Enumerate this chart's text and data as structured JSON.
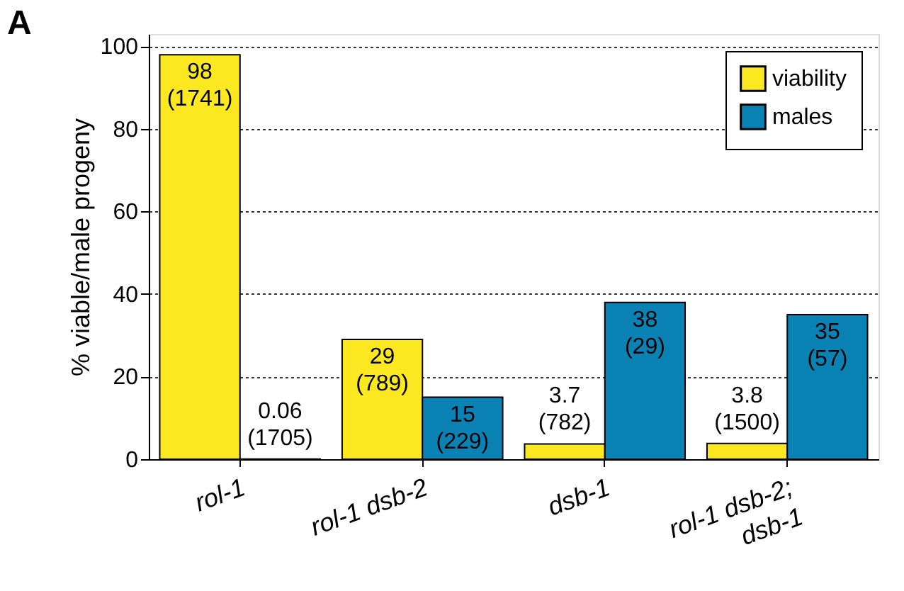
{
  "chart_data": {
    "type": "bar",
    "ylabel": "% viable/male progeny",
    "annotations": [
      "A"
    ],
    "categories": [
      "rol-1",
      "rol-1 dsb-2",
      "dsb-1",
      "rol-1 dsb-2;\ndsb-1"
    ],
    "series": [
      {
        "name": "viability",
        "color": "#fce821",
        "values": [
          98,
          29,
          3.7,
          3.8
        ],
        "value_labels": [
          "98\n(1741)",
          "29\n(789)",
          "3.7\n(782)",
          "3.8\n(1500)"
        ]
      },
      {
        "name": "males",
        "color": "#0a83b4",
        "values": [
          0.06,
          15,
          38,
          35
        ],
        "value_labels": [
          "0.06\n(1705)",
          "15\n(229)",
          "38\n(29)",
          "35\n(57)"
        ]
      }
    ],
    "ylim": [
      0,
      103
    ],
    "yticks": [
      0,
      20,
      40,
      60,
      80,
      100
    ],
    "grid": "y",
    "legend": "top right"
  }
}
